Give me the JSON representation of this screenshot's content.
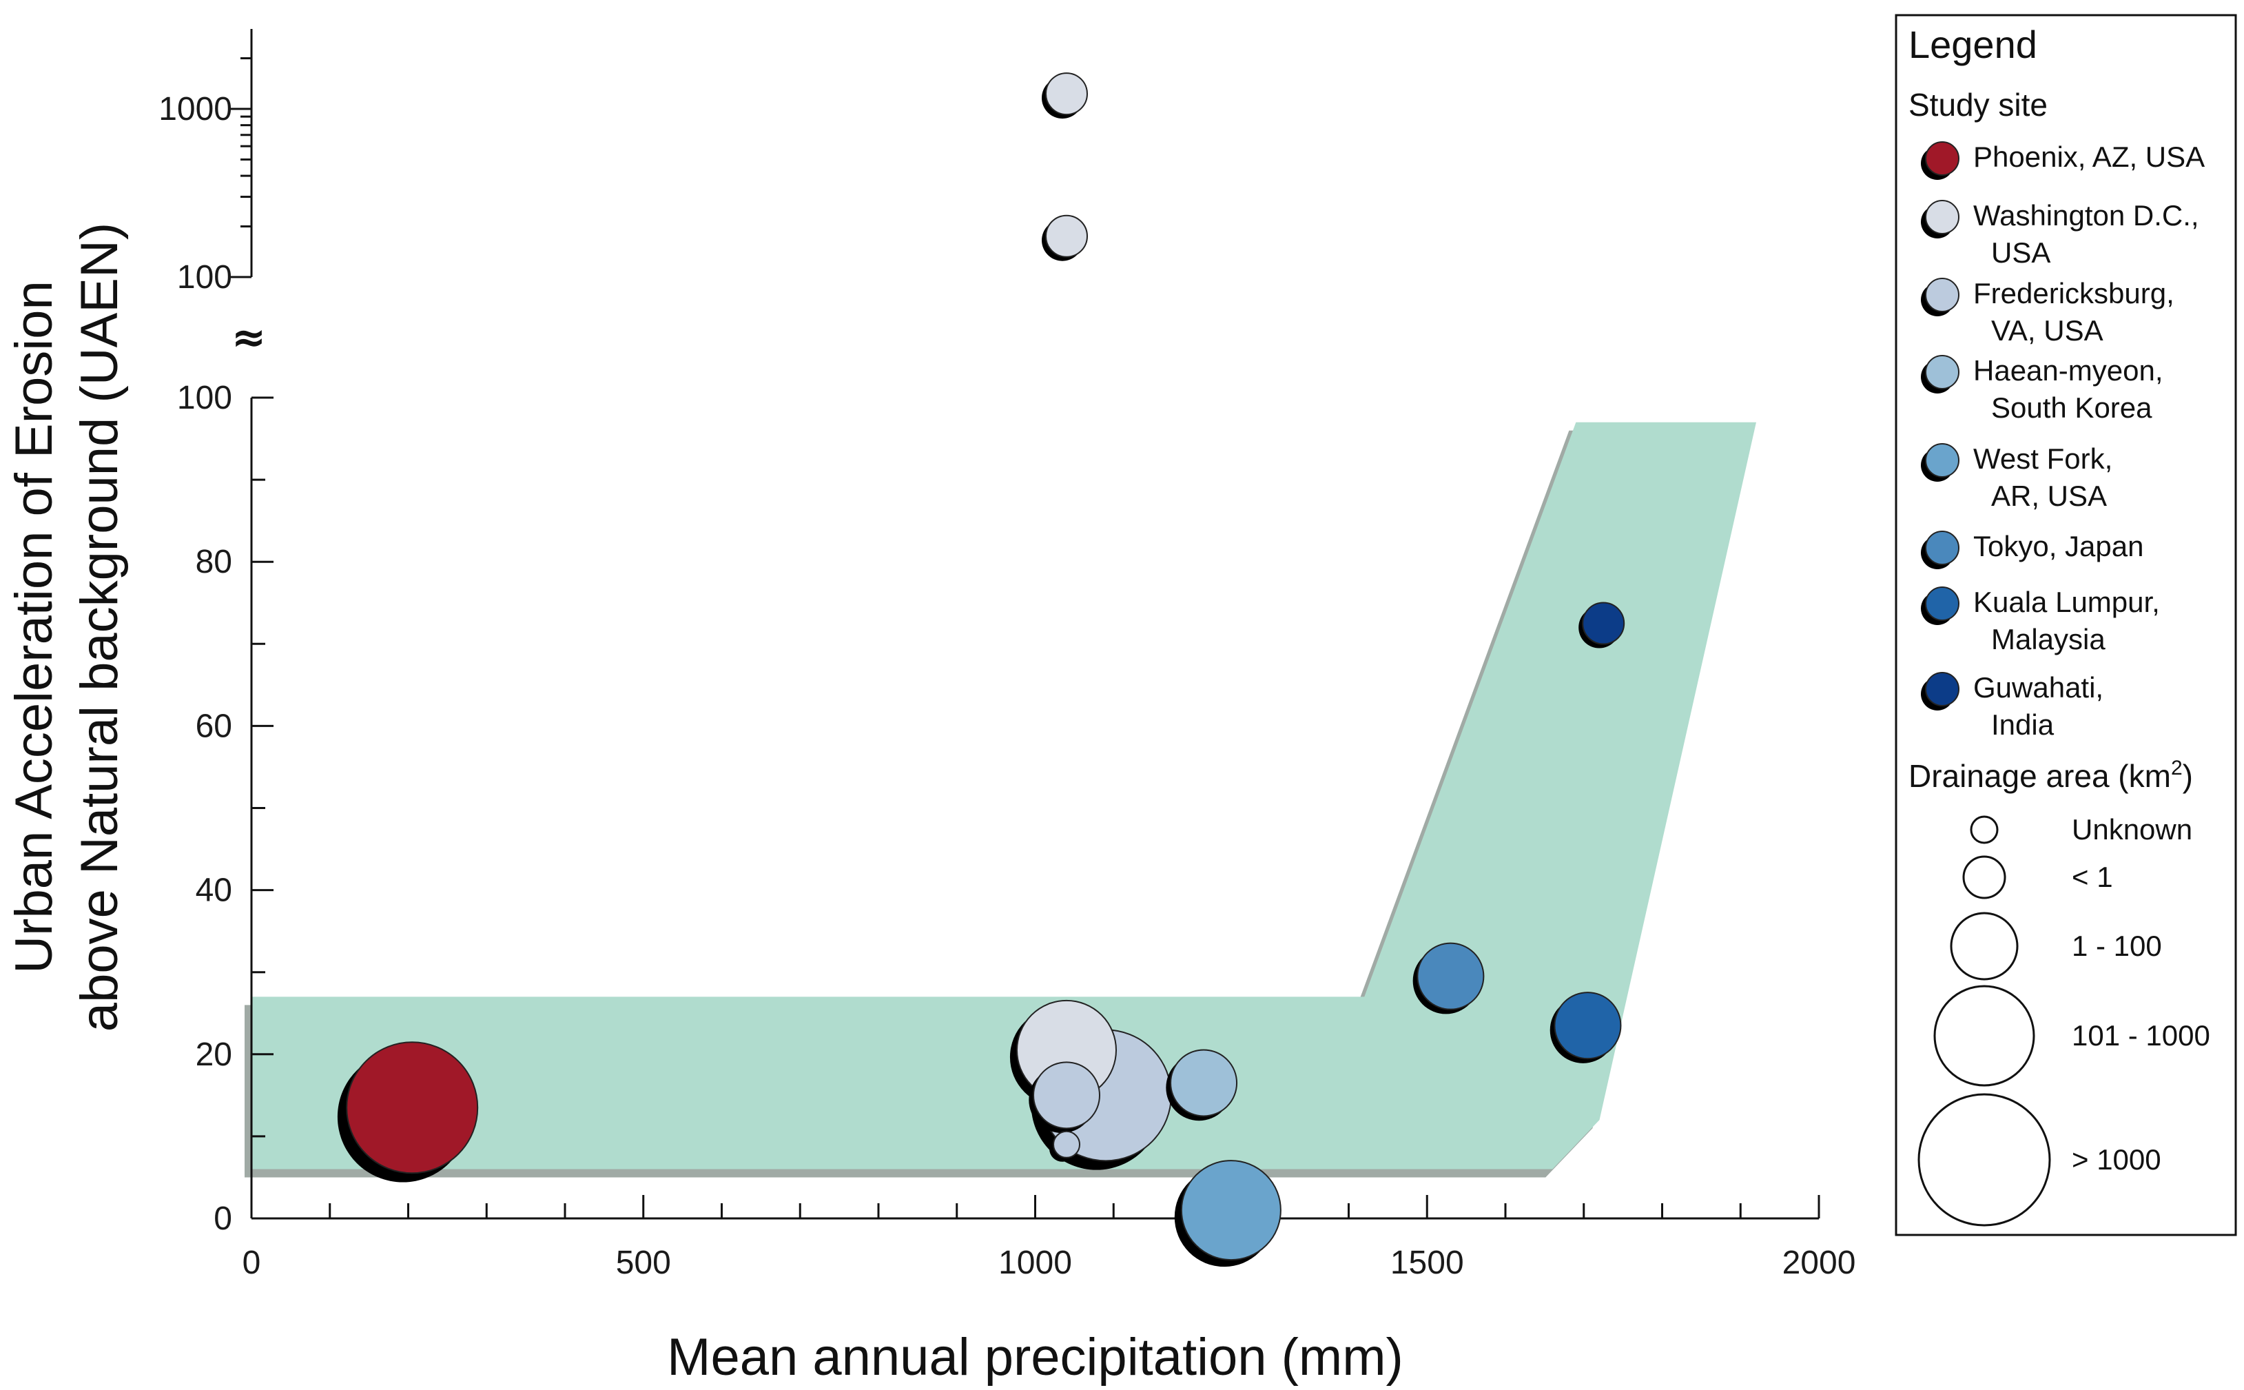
{
  "chart_data": {
    "type": "scatter",
    "xlabel": "Mean annual precipitation (mm)",
    "ylabel_line1": "Urban Acceleration of Erosion",
    "ylabel_line2": "above Natural background (UAEN)",
    "xlim": [
      0,
      2000
    ],
    "x_ticks": [
      0,
      500,
      1000,
      1500,
      2000
    ],
    "x_tick_labels": [
      "0",
      "500",
      "1000",
      "1500",
      "2000"
    ],
    "ylim_lower": [
      0,
      100
    ],
    "y_ticks_lower": [
      0,
      20,
      40,
      60,
      80,
      100
    ],
    "y_tick_labels_lower": [
      "0",
      "20",
      "40",
      "60",
      "80",
      "100"
    ],
    "y_upper_scale": "log",
    "y_ticks_upper": [
      100,
      1000
    ],
    "y_tick_labels_upper": [
      "100",
      "1000"
    ],
    "axis_break_symbol": "≈",
    "band": {
      "description": "shaded envelope",
      "color": "#b0dcce",
      "shadow_color": "#a0aaa5",
      "lower_left": [
        0,
        6
      ],
      "upper_left": [
        0,
        27
      ],
      "upper_knee": [
        1420,
        27
      ],
      "upper_right": [
        1690,
        97
      ],
      "upper_right_end": [
        1920,
        97
      ],
      "lower_knee": [
        1660,
        6
      ],
      "lower_right_end": [
        1720,
        12
      ]
    },
    "series": [
      {
        "name": "Phoenix, AZ, USA",
        "color": "#a01828",
        "points": [
          {
            "x": 205,
            "y": 13.5,
            "size_class": "> 1000"
          }
        ]
      },
      {
        "name": "Washington D.C., USA",
        "color": "#d8dde6",
        "points": [
          {
            "x": 1040,
            "y": 20.5,
            "size_class": "101 - 1000"
          },
          {
            "x": 1040,
            "y": 1230,
            "size_class": "< 1"
          },
          {
            "x": 1040,
            "y": 175,
            "size_class": "< 1"
          }
        ]
      },
      {
        "name": "Fredericksburg, VA, USA",
        "color": "#bccbde",
        "points": [
          {
            "x": 1090,
            "y": 15,
            "size_class": "> 1000"
          },
          {
            "x": 1040,
            "y": 15,
            "size_class": "1 - 100"
          },
          {
            "x": 1040,
            "y": 9,
            "size_class": "Unknown"
          }
        ]
      },
      {
        "name": "Haean-myeon, South Korea",
        "color": "#9ec0d8",
        "points": [
          {
            "x": 1215,
            "y": 16.5,
            "size_class": "1 - 100"
          }
        ]
      },
      {
        "name": "West Fork, AR, USA",
        "color": "#6aa4cc",
        "points": [
          {
            "x": 1250,
            "y": 1,
            "size_class": "101 - 1000"
          }
        ]
      },
      {
        "name": "Tokyo, Japan",
        "color": "#4a88bc",
        "points": [
          {
            "x": 1530,
            "y": 29.5,
            "size_class": "1 - 100"
          }
        ]
      },
      {
        "name": "Kuala Lumpur, Malaysia",
        "color": "#2064a8",
        "points": [
          {
            "x": 1705,
            "y": 23.5,
            "size_class": "1 - 100"
          }
        ]
      },
      {
        "name": "Guwahati, India",
        "color": "#0c3c88",
        "points": [
          {
            "x": 1725,
            "y": 72.5,
            "size_class": "< 1"
          }
        ]
      }
    ],
    "legend": {
      "title": "Legend",
      "study_site_title": "Study site",
      "sites": [
        {
          "lines": [
            "Phoenix, AZ, USA"
          ],
          "color": "#a01828"
        },
        {
          "lines": [
            "Washington D.C.,",
            "USA"
          ],
          "color": "#d8dde6"
        },
        {
          "lines": [
            "Fredericksburg,",
            "VA, USA"
          ],
          "color": "#bccbde"
        },
        {
          "lines": [
            "Haean-myeon,",
            "South Korea"
          ],
          "color": "#9ec0d8"
        },
        {
          "lines": [
            "West Fork,",
            "AR, USA"
          ],
          "color": "#6aa4cc"
        },
        {
          "lines": [
            "Tokyo, Japan"
          ],
          "color": "#4a88bc"
        },
        {
          "lines": [
            "Kuala Lumpur,",
            "Malaysia"
          ],
          "color": "#2064a8"
        },
        {
          "lines": [
            "Guwahati,",
            "India"
          ],
          "color": "#0c3c88"
        }
      ],
      "drainage_title": "Drainage area (km",
      "drainage_title_sup": "2",
      "drainage_title_end": ")",
      "size_classes": [
        "Unknown",
        "< 1",
        "1 - 100",
        "101 - 1000",
        "> 1000"
      ],
      "placement": "right"
    }
  }
}
